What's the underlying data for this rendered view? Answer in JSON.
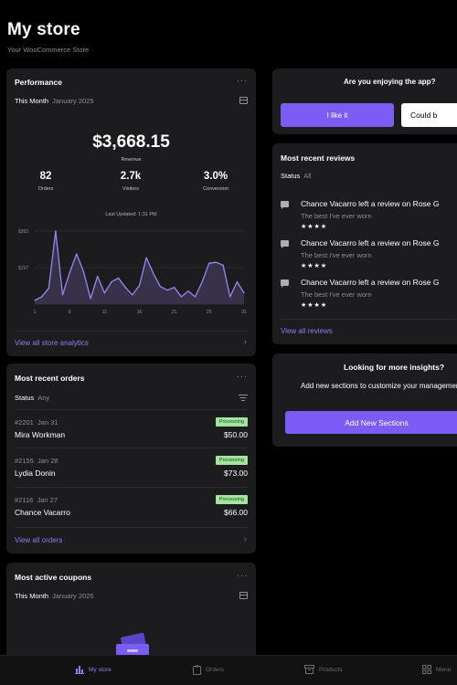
{
  "header": {
    "title": "My store",
    "subtitle": "Your WooCommerce Store"
  },
  "performance": {
    "title": "Performance",
    "more": "···",
    "range_label": "This Month",
    "range_value": "January 2025",
    "revenue": "$3,668.15",
    "revenue_label": "Revenue",
    "stats": [
      {
        "value": "82",
        "label": "Orders"
      },
      {
        "value": "2.7k",
        "label": "Visitors"
      },
      {
        "value": "3.0%",
        "label": "Conversion"
      }
    ],
    "last_updated": "Last Updated: 1:31 PM",
    "link": "View all store analytics"
  },
  "chart_data": {
    "type": "area",
    "title": "",
    "xlabel": "",
    "ylabel": "",
    "y_tick_labels": [
      "$393",
      "$197"
    ],
    "x_ticks": [
      "1",
      "6",
      "11",
      "16",
      "21",
      "26",
      "31"
    ],
    "x": [
      1,
      2,
      3,
      4,
      5,
      6,
      7,
      8,
      9,
      10,
      11,
      12,
      13,
      14,
      15,
      16,
      17,
      18,
      19,
      20,
      21,
      22,
      23,
      24,
      25,
      26,
      27,
      28,
      29,
      30,
      31
    ],
    "values": [
      20,
      40,
      85,
      393,
      50,
      170,
      270,
      175,
      30,
      150,
      60,
      120,
      140,
      90,
      50,
      100,
      250,
      165,
      95,
      75,
      90,
      40,
      70,
      40,
      120,
      220,
      225,
      210,
      40,
      120,
      60
    ],
    "ylim": [
      0,
      393
    ],
    "series_color": "#9a86f2",
    "fill_color": "#3d3552"
  },
  "orders": {
    "title": "Most recent orders",
    "more": "···",
    "status_label": "Status",
    "status_value": "Any",
    "items": [
      {
        "id": "#2201",
        "date": "Jan 31",
        "customer": "Mira Workman",
        "status": "Processing",
        "amount": "$50.00"
      },
      {
        "id": "#2155",
        "date": "Jan 28",
        "customer": "Lydia Donin",
        "status": "Processing",
        "amount": "$73.00"
      },
      {
        "id": "#2116",
        "date": "Jan 27",
        "customer": "Chance Vacarro",
        "status": "Processing",
        "amount": "$66.00"
      }
    ],
    "link": "View all orders"
  },
  "coupons": {
    "title": "Most active coupons",
    "more": "···",
    "range_label": "This Month",
    "range_value": "January 2025"
  },
  "enjoy": {
    "title": "Are you enjoying the app?",
    "yes": "I like it",
    "no": "Could b"
  },
  "reviews": {
    "title": "Most recent reviews",
    "status_label": "Status",
    "status_value": "All",
    "items": [
      {
        "text": "Chance Vacarro left a review on Rose G",
        "quote": "The best I've ever worn",
        "stars": "★★★★"
      },
      {
        "text": "Chance Vacarro left a review on Rose G",
        "quote": "The best I've ever worn",
        "stars": "★★★★"
      },
      {
        "text": "Chance Vacarro left a review on Rose G",
        "quote": "The best I've ever worn",
        "stars": "★★★★"
      }
    ],
    "link": "View all reviews"
  },
  "insights": {
    "title": "Looking for more insights?",
    "description": "Add new sections to customize your management experience",
    "button": "Add New Sections"
  },
  "tabbar": {
    "items": [
      {
        "label": "My store",
        "icon": "chart-bar-icon"
      },
      {
        "label": "Orders",
        "icon": "clipboard-icon"
      },
      {
        "label": "Products",
        "icon": "archive-box-icon"
      },
      {
        "label": "Menu",
        "icon": "grid-icon"
      }
    ]
  },
  "colors": {
    "accent": "#7b5cf5",
    "link": "#8a7ef0",
    "card": "#1c1c1e",
    "badge": "#a3e4a0"
  }
}
